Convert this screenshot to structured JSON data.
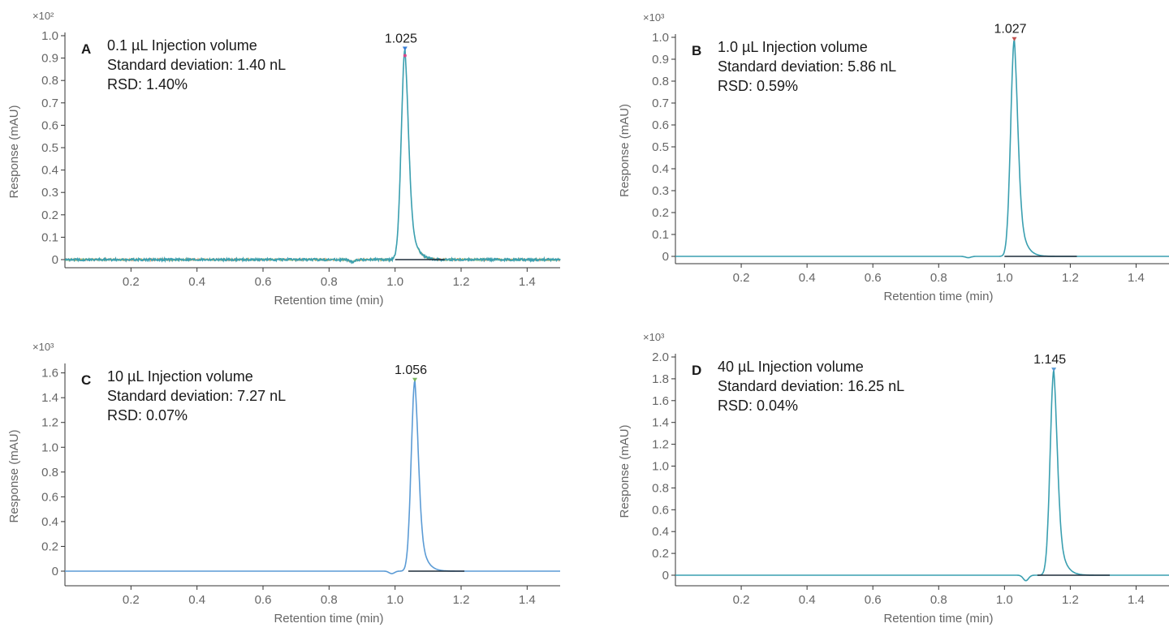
{
  "chart_data": [
    {
      "type": "line",
      "panel_letter": "A",
      "annotations": [
        "0.1 µL Injection volume",
        "Standard deviation: 1.40 nL",
        "RSD: 1.40%"
      ],
      "multiplier": "×10²",
      "xlabel": "Retention time (min)",
      "ylabel": "Response (mAU)",
      "xlim": [
        0.0,
        1.5
      ],
      "ylim": [
        -0.03,
        1.0
      ],
      "xticks": [
        0.2,
        0.4,
        0.6,
        0.8,
        1.0,
        1.2,
        1.4
      ],
      "yticks": [
        0,
        0.1,
        0.2,
        0.3,
        0.4,
        0.5,
        0.6,
        0.7,
        0.8,
        0.9,
        1.0
      ],
      "ytick_labels": [
        "0",
        "0.1",
        "0.2",
        "0.3",
        "0.4",
        "0.5",
        "0.6",
        "0.7",
        "0.8",
        "0.9",
        "1.0"
      ],
      "peak": {
        "retention_time": 1.025,
        "label": "1.025",
        "apex_x": 1.03,
        "height": 0.94
      },
      "baseline_x": [
        1.0,
        1.15
      ],
      "dip": {
        "x": 0.87,
        "depth": -0.01
      },
      "noise": 0.005,
      "grid": false,
      "legend": "none",
      "colors": {
        "trace": "#3a9fb0",
        "trace_alt": "#e07b39",
        "trace_alt2": "#7bb661",
        "baseline": "#1f2d3a",
        "axis": "#333333",
        "marker": "#3a7fd5",
        "marker_alt": "#d64a8a"
      }
    },
    {
      "type": "line",
      "panel_letter": "B",
      "annotations": [
        "1.0 µL Injection volume",
        "Standard deviation: 5.86 nL",
        "RSD: 0.59%"
      ],
      "multiplier": "×10³",
      "xlabel": "Retention time (min)",
      "ylabel": "Response (mAU)",
      "xlim": [
        0.0,
        1.5
      ],
      "ylim": [
        -0.03,
        1.0
      ],
      "xticks": [
        0.2,
        0.4,
        0.6,
        0.8,
        1.0,
        1.2,
        1.4
      ],
      "yticks": [
        0,
        0.1,
        0.2,
        0.3,
        0.4,
        0.5,
        0.6,
        0.7,
        0.8,
        0.9,
        1.0
      ],
      "ytick_labels": [
        "0",
        "0.1",
        "0.2",
        "0.3",
        "0.4",
        "0.5",
        "0.6",
        "0.7",
        "0.8",
        "0.9",
        "1.0"
      ],
      "peak": {
        "retention_time": 1.027,
        "label": "1.027",
        "apex_x": 1.03,
        "height": 0.99
      },
      "baseline_x": [
        1.0,
        1.22
      ],
      "dip": {
        "x": 0.89,
        "depth": -0.006
      },
      "noise": 0,
      "grid": false,
      "legend": "none",
      "colors": {
        "trace": "#3a9fb0",
        "baseline": "#1f2d3a",
        "axis": "#333333",
        "marker": "#c0504d"
      }
    },
    {
      "type": "line",
      "panel_letter": "C",
      "annotations": [
        "10 µL Injection volume",
        "Standard deviation: 7.27 nL",
        "RSD: 0.07%"
      ],
      "multiplier": "×10³",
      "xlabel": "Retention time (min)",
      "ylabel": "Response (mAU)",
      "xlim": [
        0.0,
        1.5
      ],
      "ylim": [
        -0.06,
        1.65
      ],
      "xticks": [
        0.2,
        0.4,
        0.6,
        0.8,
        1.0,
        1.2,
        1.4
      ],
      "yticks": [
        0,
        0.2,
        0.4,
        0.6,
        0.8,
        1.0,
        1.2,
        1.4,
        1.6
      ],
      "ytick_labels": [
        "0",
        "0.2",
        "0.4",
        "0.6",
        "0.8",
        "1.0",
        "1.2",
        "1.4",
        "1.6"
      ],
      "peak": {
        "retention_time": 1.056,
        "label": "1.056",
        "apex_x": 1.06,
        "height": 1.54
      },
      "baseline_x": [
        1.04,
        1.21
      ],
      "dip": {
        "x": 0.99,
        "depth": -0.02
      },
      "noise": 0,
      "grid": false,
      "legend": "none",
      "colors": {
        "trace": "#5b9bd5",
        "baseline": "#1f2d3a",
        "axis": "#333333",
        "marker": "#7bb661"
      }
    },
    {
      "type": "line",
      "panel_letter": "D",
      "annotations": [
        "40 µL Injection volume",
        "Standard deviation: 16.25 nL",
        "RSD: 0.04%"
      ],
      "multiplier": "×10³",
      "xlabel": "Retention time (min)",
      "ylabel": "Response (mAU)",
      "xlim": [
        0.0,
        1.5
      ],
      "ylim": [
        -0.09,
        2.0
      ],
      "xticks": [
        0.2,
        0.4,
        0.6,
        0.8,
        1.0,
        1.2,
        1.4
      ],
      "yticks": [
        0,
        0.2,
        0.4,
        0.6,
        0.8,
        1.0,
        1.2,
        1.4,
        1.6,
        1.8,
        2.0
      ],
      "ytick_labels": [
        "0",
        "0.2",
        "0.4",
        "0.6",
        "0.8",
        "1.0",
        "1.2",
        "1.4",
        "1.6",
        "1.8",
        "2.0"
      ],
      "peak": {
        "retention_time": 1.145,
        "label": "1.145",
        "apex_x": 1.15,
        "height": 1.88
      },
      "baseline_x": [
        1.1,
        1.32
      ],
      "dip": {
        "x": 1.065,
        "depth": -0.05
      },
      "noise": 0,
      "grid": false,
      "legend": "none",
      "colors": {
        "trace": "#3a9fb0",
        "baseline": "#1f2d3a",
        "axis": "#333333",
        "marker": "#5b9bd5"
      }
    }
  ]
}
